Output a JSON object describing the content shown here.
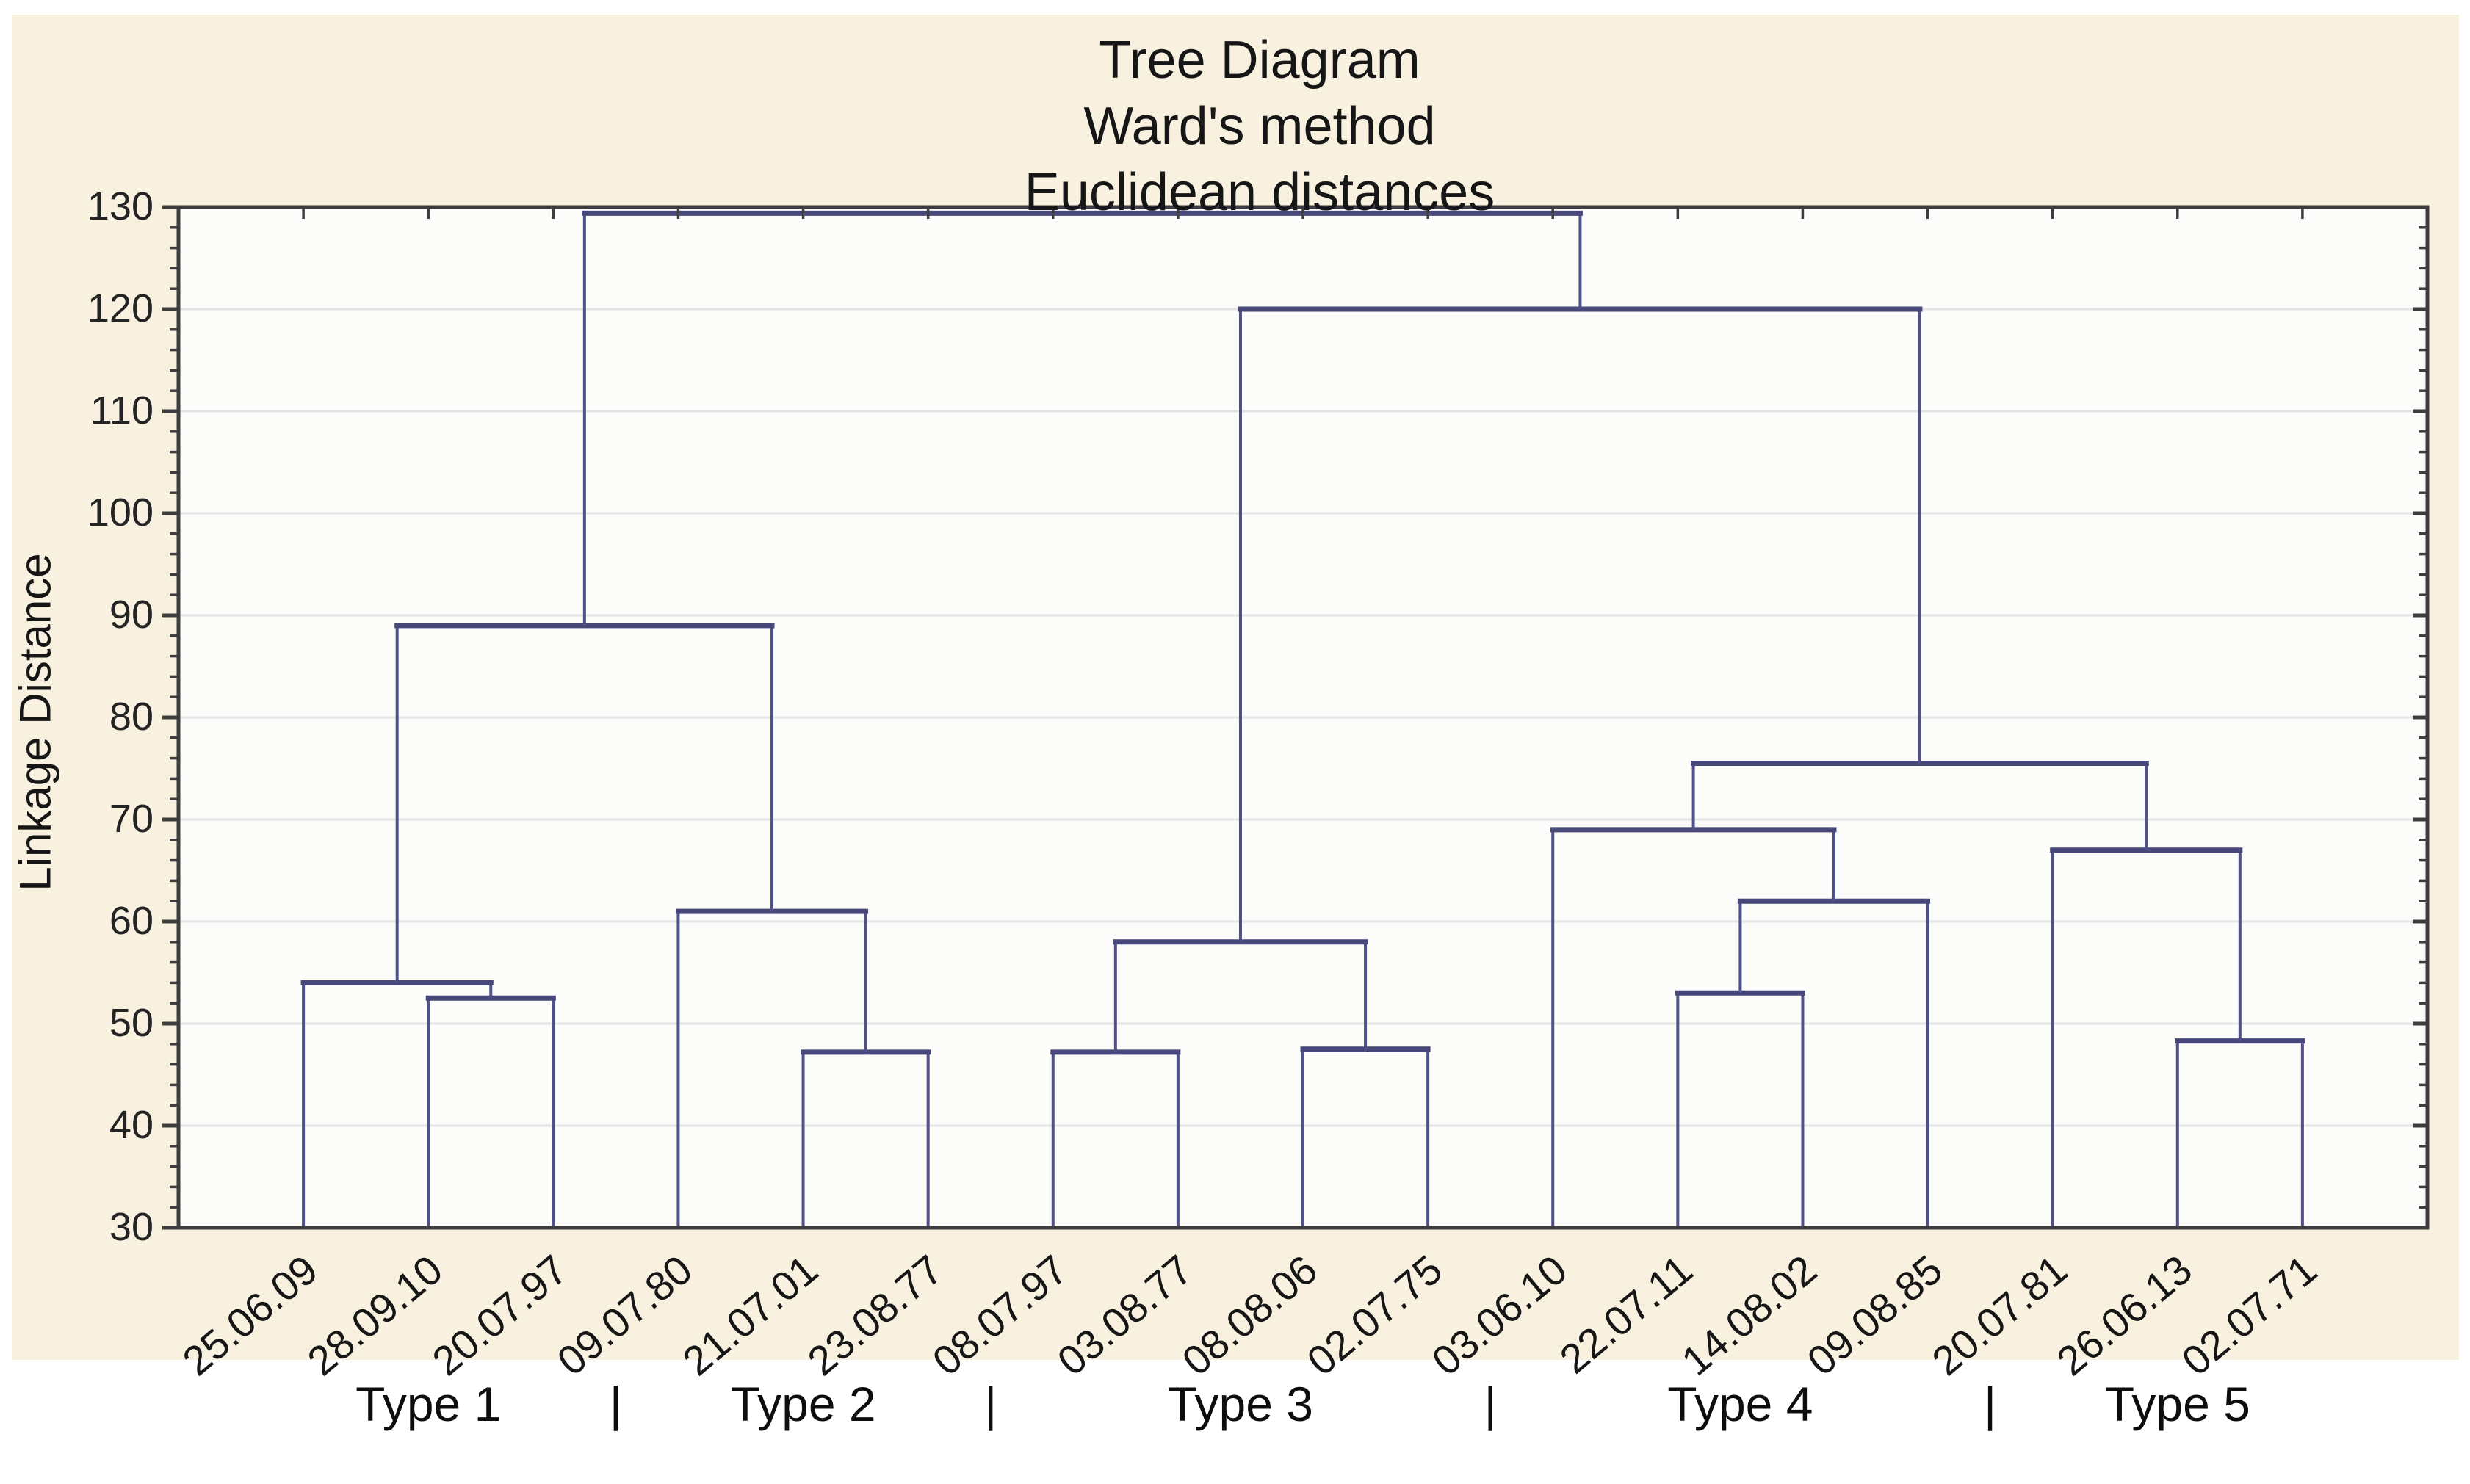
{
  "title": {
    "lines": [
      "Tree Diagram",
      "Ward's method",
      "Euclidean distances"
    ]
  },
  "y_axis": {
    "label": "Linkage Distance",
    "min": 30,
    "max": 130,
    "major_step": 10,
    "minor_step": 2,
    "tick_labels": [
      "30",
      "40",
      "50",
      "60",
      "70",
      "80",
      "90",
      "100",
      "110",
      "120",
      "130"
    ]
  },
  "chart_data": {
    "type": "dendrogram",
    "method_note": "Ward's method, Euclidean distances",
    "leaves": [
      "25.06.09",
      "28.09.10",
      "20.07.97",
      "09.07.80",
      "21.07.01",
      "23.08.77",
      "08.07.97",
      "03.08.77",
      "08.08.06",
      "02.07.75",
      "03.06.10",
      "22.07.11",
      "14.08.02",
      "09.08.85",
      "20.07.81",
      "26.06.13",
      "02.07.71"
    ],
    "merges": [
      {
        "id": "M0",
        "a": 1,
        "b": 2,
        "height": 52.5
      },
      {
        "id": "M1",
        "a": 0,
        "b": "M0",
        "height": 54.0
      },
      {
        "id": "M2",
        "a": 4,
        "b": 5,
        "height": 47.2
      },
      {
        "id": "M3",
        "a": 3,
        "b": "M2",
        "height": 61.0
      },
      {
        "id": "M4",
        "a": "M1",
        "b": "M3",
        "height": 89.0
      },
      {
        "id": "M5",
        "a": 6,
        "b": 7,
        "height": 47.2
      },
      {
        "id": "M6",
        "a": 8,
        "b": 9,
        "height": 47.5
      },
      {
        "id": "M7",
        "a": "M5",
        "b": "M6",
        "height": 58.0
      },
      {
        "id": "M8",
        "a": 11,
        "b": 12,
        "height": 53.0
      },
      {
        "id": "M9",
        "a": "M8",
        "b": 13,
        "height": 62.0
      },
      {
        "id": "M10",
        "a": 10,
        "b": "M9",
        "height": 69.0
      },
      {
        "id": "M11",
        "a": 15,
        "b": 16,
        "height": 48.3
      },
      {
        "id": "M12",
        "a": 14,
        "b": "M11",
        "height": 67.0
      },
      {
        "id": "M13",
        "a": "M10",
        "b": "M12",
        "height": 75.5
      },
      {
        "id": "M14",
        "a": "M7",
        "b": "M13",
        "height": 120.0
      },
      {
        "id": "M15",
        "a": "M4",
        "b": "M14",
        "height": 129.4
      }
    ],
    "groups": [
      {
        "label": "Type 1",
        "first_leaf": 0,
        "last_leaf": 2
      },
      {
        "label": "Type 2",
        "first_leaf": 3,
        "last_leaf": 5
      },
      {
        "label": "Type 3",
        "first_leaf": 6,
        "last_leaf": 9
      },
      {
        "label": "Type 4",
        "first_leaf": 10,
        "last_leaf": 13
      },
      {
        "label": "Type 5",
        "first_leaf": 14,
        "last_leaf": 16
      }
    ],
    "group_separator": "|",
    "ylim": [
      30,
      130
    ],
    "grid": "horizontal-major"
  },
  "colors": {
    "background_panel": "#f8f1e0",
    "plot_background": "#fcfcfb",
    "frame": "#3d3d3d",
    "gridline": "#e4e4e4",
    "link_vertical": "#50508a",
    "link_horizontal": "#47477a",
    "text": "#161616"
  }
}
